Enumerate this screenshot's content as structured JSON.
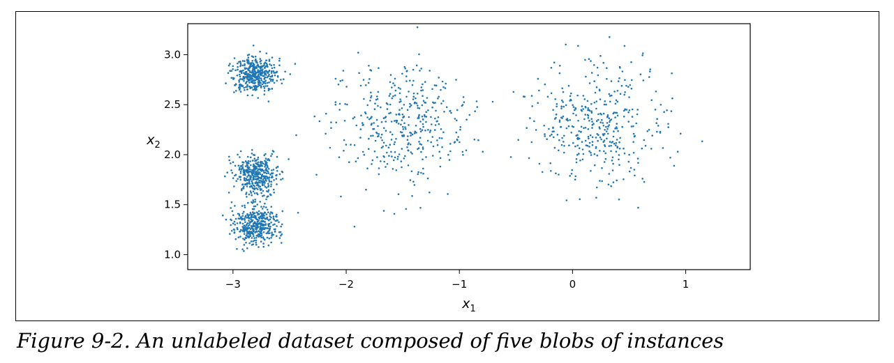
{
  "caption": "Figure 9-2. An unlabeled dataset composed of five blobs of instances",
  "chart_data": {
    "type": "scatter",
    "title": "",
    "xlabel": "x",
    "xlabel_subscript": "1",
    "ylabel": "x",
    "ylabel_subscript": "2",
    "xlim": [
      -3.4,
      1.57
    ],
    "ylim": [
      0.85,
      3.31
    ],
    "xticks": [
      -3,
      -2,
      -1,
      0,
      1
    ],
    "xtick_labels": [
      "−3",
      "−2",
      "−1",
      "0",
      "1"
    ],
    "yticks": [
      1.0,
      1.5,
      2.0,
      2.5,
      3.0
    ],
    "ytick_labels": [
      "1.0",
      "1.5",
      "2.0",
      "2.5",
      "3.0"
    ],
    "grid": false,
    "point_color": "#1f77b4",
    "blobs": [
      {
        "center": [
          -2.8,
          2.8
        ],
        "std": 0.1,
        "n": 400
      },
      {
        "center": [
          -2.8,
          1.8
        ],
        "std": 0.1,
        "n": 400
      },
      {
        "center": [
          -2.8,
          1.3
        ],
        "std": 0.1,
        "n": 400
      },
      {
        "center": [
          -1.5,
          2.3
        ],
        "std": 0.3,
        "n": 400
      },
      {
        "center": [
          0.2,
          2.3
        ],
        "std": 0.3,
        "n": 400
      }
    ]
  }
}
